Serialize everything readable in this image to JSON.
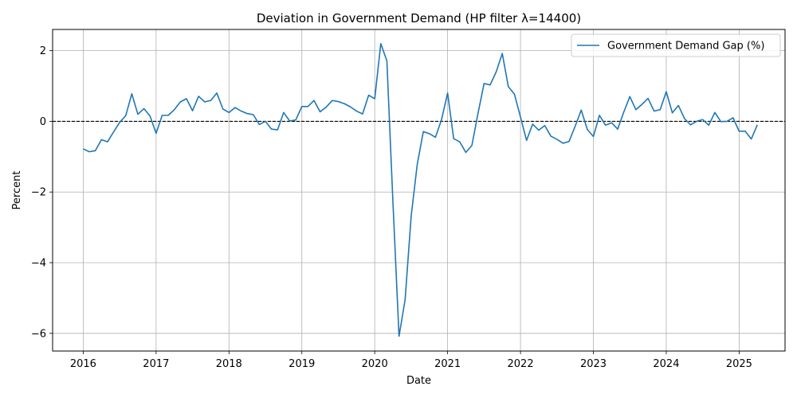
{
  "chart_data": {
    "type": "line",
    "title": "Deviation in Government Demand (HP filter λ=14400)",
    "xlabel": "Date",
    "ylabel": "Percent",
    "xlim": [
      2015.58,
      2025.63
    ],
    "ylim": [
      -6.5,
      2.6
    ],
    "x_ticks": [
      2016,
      2017,
      2018,
      2019,
      2020,
      2021,
      2022,
      2023,
      2024,
      2025
    ],
    "x_tick_labels": [
      "2016",
      "2017",
      "2018",
      "2019",
      "2020",
      "2021",
      "2022",
      "2023",
      "2024",
      "2025"
    ],
    "y_ticks": [
      -6,
      -4,
      -2,
      0,
      2
    ],
    "y_tick_labels": [
      "−6",
      "−4",
      "−2",
      "0",
      "2"
    ],
    "grid": true,
    "legend_position": "top-right",
    "reference_line": {
      "y": 0,
      "style": "dashed",
      "color": "#000000"
    },
    "series": [
      {
        "name": "Government Demand Gap (%)",
        "color": "#1f77b4",
        "start": "2016-01",
        "frequency": "monthly",
        "values": [
          -0.78,
          -0.86,
          -0.83,
          -0.52,
          -0.58,
          -0.3,
          -0.03,
          0.16,
          0.78,
          0.2,
          0.36,
          0.15,
          -0.34,
          0.17,
          0.17,
          0.33,
          0.55,
          0.64,
          0.3,
          0.71,
          0.55,
          0.59,
          0.8,
          0.35,
          0.25,
          0.39,
          0.29,
          0.22,
          0.19,
          -0.09,
          0.0,
          -0.22,
          -0.24,
          0.25,
          0.01,
          0.04,
          0.42,
          0.42,
          0.59,
          0.27,
          0.4,
          0.59,
          0.56,
          0.5,
          0.41,
          0.29,
          0.21,
          0.74,
          0.64,
          2.2,
          1.71,
          -2.3,
          -6.08,
          -5.05,
          -2.68,
          -1.22,
          -0.29,
          -0.35,
          -0.45,
          0.05,
          0.8,
          -0.49,
          -0.58,
          -0.88,
          -0.68,
          0.22,
          1.07,
          1.03,
          1.4,
          1.92,
          0.98,
          0.77,
          0.12,
          -0.54,
          -0.08,
          -0.25,
          -0.12,
          -0.42,
          -0.51,
          -0.62,
          -0.57,
          -0.14,
          0.32,
          -0.23,
          -0.43,
          0.17,
          -0.11,
          -0.04,
          -0.22,
          0.26,
          0.7,
          0.33,
          0.48,
          0.65,
          0.29,
          0.33,
          0.84,
          0.24,
          0.45,
          0.08,
          -0.1,
          0.0,
          0.05,
          -0.11,
          0.25,
          -0.01,
          0.0,
          0.1,
          -0.28,
          -0.28,
          -0.5,
          -0.1
        ]
      }
    ]
  }
}
